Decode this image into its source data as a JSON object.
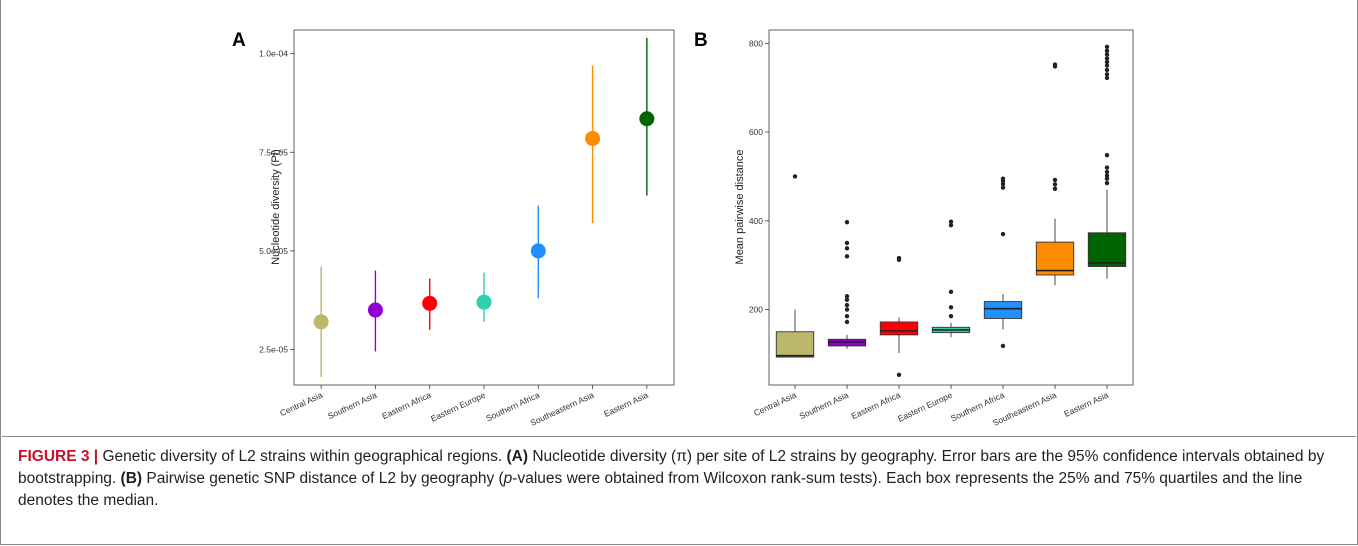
{
  "panels": {
    "a": {
      "label": "A"
    },
    "b": {
      "label": "B"
    }
  },
  "chart_data": [
    {
      "panel": "A",
      "type": "scatter",
      "ylabel": "Nucleotide diversity (Pi)",
      "xlabel": "",
      "categories": [
        "Central Asia",
        "Southern Asia",
        "Eastern Africa",
        "Eastern Europe",
        "Southern Africa",
        "Southeastern Asia",
        "Eastern Asia"
      ],
      "y": [
        3.2e-05,
        3.5e-05,
        3.67e-05,
        3.7e-05,
        5e-05,
        7.85e-05,
        8.35e-05
      ],
      "err_low": [
        1.8e-05,
        2.45e-05,
        3e-05,
        3.2e-05,
        3.8e-05,
        5.7e-05,
        6.4e-05
      ],
      "err_high": [
        4.6e-05,
        4.5e-05,
        4.3e-05,
        4.45e-05,
        6.15e-05,
        9.7e-05,
        0.000104
      ],
      "colors": [
        "#bdb76b",
        "#9400d3",
        "#ff0000",
        "#2fd0b0",
        "#2090ff",
        "#ff8c00",
        "#006400"
      ],
      "ylim": [
        1.6e-05,
        0.000106
      ],
      "yticks": [
        2.5e-05,
        5e-05,
        7.5e-05,
        0.0001
      ],
      "ytick_labels": [
        "2.5e-05",
        "5.0e-05",
        "7.5e-05",
        "1.0e-04"
      ],
      "grid": false
    },
    {
      "panel": "B",
      "type": "box",
      "ylabel": "Mean pairwise distance",
      "xlabel": "",
      "categories": [
        "Central Asia",
        "Southern Asia",
        "Eastern Africa",
        "Eastern Europe",
        "Southern Africa",
        "Southeastern Asia",
        "Eastern Asia"
      ],
      "boxes": [
        {
          "min": 92,
          "q1": 93,
          "median": 96,
          "q3": 150,
          "max": 200,
          "outliers": [
            500
          ]
        },
        {
          "min": 112,
          "q1": 118,
          "median": 127,
          "q3": 133,
          "max": 143,
          "outliers": [
            172,
            185,
            200,
            210,
            222,
            230,
            320,
            338,
            350,
            397
          ]
        },
        {
          "min": 102,
          "q1": 143,
          "median": 152,
          "q3": 172,
          "max": 182,
          "outliers": [
            53,
            312,
            316
          ]
        },
        {
          "min": 138,
          "q1": 148,
          "median": 154,
          "q3": 160,
          "max": 170,
          "outliers": [
            185,
            205,
            240,
            390,
            398
          ]
        },
        {
          "min": 155,
          "q1": 180,
          "median": 202,
          "q3": 218,
          "max": 235,
          "outliers": [
            118,
            370,
            475,
            483,
            490,
            495
          ]
        },
        {
          "min": 255,
          "q1": 278,
          "median": 288,
          "q3": 352,
          "max": 405,
          "outliers": [
            472,
            482,
            492,
            748,
            752
          ]
        },
        {
          "min": 270,
          "q1": 297,
          "median": 305,
          "q3": 373,
          "max": 470,
          "outliers": [
            485,
            495,
            502,
            510,
            520,
            548,
            722,
            730,
            740,
            750,
            758,
            766,
            775,
            783,
            792
          ]
        }
      ],
      "colors": [
        "#bdb76b",
        "#8a00c8",
        "#ff0000",
        "#2fd0b0",
        "#2090ff",
        "#ff8c00",
        "#006400"
      ],
      "ylim": [
        30,
        830
      ],
      "yticks": [
        200,
        400,
        600,
        800
      ],
      "ytick_labels": [
        "200",
        "400",
        "600",
        "800"
      ],
      "grid": false
    }
  ],
  "caption": {
    "figure_label": "FIGURE 3 |",
    "intro": " Genetic diversity of L2 strains within geographical regions. ",
    "a_ref": "(A)",
    "a_text": " Nucleotide diversity (π) per site of L2 strains by geography. Error bars are the 95% confidence intervals obtained by bootstrapping. ",
    "b_ref": "(B)",
    "b_text_1": " Pairwise genetic SNP distance of L2 by geography (",
    "b_pvalue": "p",
    "b_text_2": "-values were obtained from Wilcoxon rank-sum tests). Each box represents the 25% and 75% quartiles and the line denotes the median."
  }
}
